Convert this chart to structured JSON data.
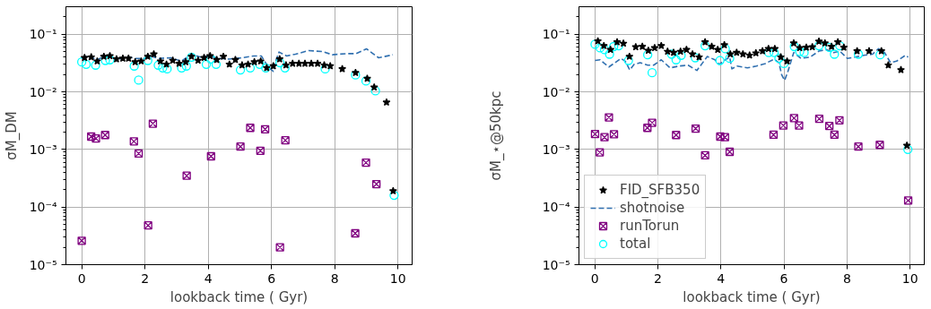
{
  "chart_data": [
    {
      "type": "scatter",
      "xlabel": "lookback time ( Gyr)",
      "ylabel": "σM_DM",
      "log": "y",
      "grid": true,
      "xlim": [
        -0.5,
        10.45
      ],
      "xticks": [
        0,
        2,
        4,
        6,
        8,
        10
      ],
      "ylim": [
        1e-05,
        0.3
      ],
      "yticks": [
        {
          "value": 1e-05,
          "label": "10⁻⁵"
        },
        {
          "value": 0.0001,
          "label": "10⁻⁴"
        },
        {
          "value": 0.001,
          "label": "10⁻³"
        },
        {
          "value": 0.01,
          "label": "10⁻²"
        },
        {
          "value": 0.1,
          "label": "10⁻¹"
        }
      ],
      "series": [
        {
          "type": "line",
          "marker": "none",
          "line_style": "dashed",
          "color": "#3070b0",
          "x": [
            0.0,
            0.14,
            0.33,
            0.49,
            0.75,
            0.94,
            1.13,
            1.41,
            1.69,
            1.97,
            2.21,
            2.44,
            2.82,
            3.15,
            3.47,
            3.76,
            4.04,
            4.32,
            4.65,
            5.07,
            5.45,
            5.68,
            5.92,
            6.06,
            6.15,
            6.24,
            6.48,
            6.76,
            7.18,
            7.61,
            7.93,
            8.36,
            8.68,
            9.01,
            9.39,
            9.84
          ],
          "values": [
            0.038,
            0.041,
            0.039,
            0.036,
            0.042,
            0.04,
            0.036,
            0.041,
            0.038,
            0.038,
            0.041,
            0.038,
            0.039,
            0.034,
            0.045,
            0.04,
            0.042,
            0.038,
            0.037,
            0.039,
            0.042,
            0.042,
            0.026,
            0.0226,
            0.036,
            0.049,
            0.042,
            0.045,
            0.052,
            0.05,
            0.044,
            0.046,
            0.046,
            0.0556,
            0.039,
            0.044
          ]
        },
        {
          "type": "scatter",
          "marker": "star",
          "color": "#000000",
          "x": [
            0.09,
            0.3,
            0.49,
            0.7,
            0.89,
            1.1,
            1.3,
            1.48,
            1.69,
            1.88,
            2.09,
            2.28,
            2.49,
            2.68,
            2.88,
            3.08,
            3.29,
            3.47,
            3.68,
            3.87,
            4.06,
            4.27,
            4.48,
            4.67,
            4.86,
            5.07,
            5.26,
            5.46,
            5.66,
            5.85,
            6.06,
            6.26,
            6.46,
            6.67,
            6.87,
            7.06,
            7.26,
            7.46,
            7.67,
            7.86,
            8.24,
            8.66,
            9.03,
            9.25,
            9.64,
            9.85
          ],
          "values": [
            0.039,
            0.04,
            0.034,
            0.041,
            0.042,
            0.037,
            0.038,
            0.038,
            0.033,
            0.034,
            0.041,
            0.045,
            0.034,
            0.03,
            0.035,
            0.031,
            0.033,
            0.041,
            0.035,
            0.039,
            0.042,
            0.036,
            0.041,
            0.03,
            0.036,
            0.029,
            0.03,
            0.033,
            0.034,
            0.026,
            0.028,
            0.037,
            0.029,
            0.031,
            0.031,
            0.031,
            0.031,
            0.031,
            0.029,
            0.028,
            0.025,
            0.0215,
            0.017,
            0.012,
            0.0066,
            0.00019
          ]
        },
        {
          "type": "scatter",
          "marker": "cross",
          "color": "#800080",
          "x": [
            0.0,
            0.3,
            0.45,
            0.74,
            1.65,
            1.8,
            2.1,
            2.25,
            3.32,
            4.09,
            5.02,
            5.33,
            5.65,
            5.8,
            6.27,
            6.44,
            8.65,
            8.99,
            9.32
          ],
          "values": [
            2.6e-05,
            0.00167,
            0.00155,
            0.00178,
            0.00138,
            0.00085,
            4.8e-05,
            0.0028,
            0.00035,
            0.00076,
            0.00112,
            0.00237,
            0.00095,
            0.00224,
            2e-05,
            0.00144,
            3.5e-05,
            0.00059,
            0.00025
          ]
        },
        {
          "type": "scatter",
          "marker": "circle",
          "color": "#00ffff",
          "x": [
            0.0,
            0.14,
            0.44,
            0.75,
            0.89,
            1.66,
            1.8,
            2.09,
            2.42,
            2.56,
            2.7,
            3.16,
            3.31,
            3.47,
            3.94,
            4.08,
            4.25,
            5.02,
            5.33,
            5.63,
            5.82,
            6.27,
            6.43,
            7.7,
            8.66,
            8.99,
            9.29,
            9.88
          ],
          "values": [
            0.033,
            0.03,
            0.029,
            0.035,
            0.036,
            0.028,
            0.016,
            0.035,
            0.029,
            0.026,
            0.025,
            0.026,
            0.028,
            0.04,
            0.03,
            0.037,
            0.03,
            0.024,
            0.026,
            0.03,
            0.026,
            0.032,
            0.026,
            0.025,
            0.0196,
            0.0154,
            0.0104,
            0.00016
          ]
        }
      ]
    },
    {
      "type": "scatter",
      "xlabel": "lookback time ( Gyr)",
      "ylabel": "σM_⋆@50kpc",
      "log": "y",
      "grid": true,
      "legend": "bottom left",
      "xlim": [
        -0.5,
        10.45
      ],
      "xticks": [
        0,
        2,
        4,
        6,
        8,
        10
      ],
      "ylim": [
        1e-05,
        0.3
      ],
      "yticks": [
        {
          "value": 1e-05,
          "label": "10⁻⁵"
        },
        {
          "value": 0.0001,
          "label": "10⁻⁴"
        },
        {
          "value": 0.001,
          "label": "10⁻³"
        },
        {
          "value": 0.01,
          "label": "10⁻²"
        },
        {
          "value": 0.1,
          "label": "10⁻¹"
        }
      ],
      "series": [
        {
          "name": "FID_SFB350",
          "type": "scatter",
          "marker": "star",
          "color": "#000000",
          "x": [
            0.1,
            0.29,
            0.5,
            0.71,
            0.91,
            1.1,
            1.3,
            1.51,
            1.7,
            1.9,
            2.11,
            2.31,
            2.5,
            2.72,
            2.91,
            3.1,
            3.31,
            3.5,
            3.71,
            3.9,
            4.11,
            4.3,
            4.5,
            4.7,
            4.91,
            5.11,
            5.32,
            5.51,
            5.71,
            5.9,
            6.1,
            6.31,
            6.5,
            6.71,
            6.9,
            7.11,
            7.3,
            7.51,
            7.71,
            7.9,
            8.32,
            8.7,
            9.09,
            9.31,
            9.71,
            9.9
          ],
          "values": [
            0.076,
            0.063,
            0.054,
            0.073,
            0.069,
            0.041,
            0.06,
            0.061,
            0.052,
            0.058,
            0.063,
            0.05,
            0.048,
            0.05,
            0.054,
            0.045,
            0.04,
            0.073,
            0.061,
            0.054,
            0.065,
            0.045,
            0.048,
            0.045,
            0.043,
            0.047,
            0.051,
            0.056,
            0.056,
            0.04,
            0.034,
            0.07,
            0.058,
            0.059,
            0.06,
            0.075,
            0.07,
            0.061,
            0.073,
            0.059,
            0.051,
            0.051,
            0.051,
            0.029,
            0.024,
            0.00117
          ]
        },
        {
          "name": "shotnoise",
          "type": "line",
          "marker": "none",
          "line_style": "dashed",
          "color": "#3070b0",
          "x": [
            0.01,
            0.17,
            0.31,
            0.45,
            0.64,
            0.83,
            0.97,
            1.11,
            1.25,
            1.44,
            1.68,
            1.87,
            2.11,
            2.39,
            2.67,
            2.96,
            3.24,
            3.57,
            3.81,
            3.95,
            4.14,
            4.28,
            4.35,
            4.51,
            4.84,
            5.13,
            5.41,
            5.69,
            5.84,
            5.93,
            6.02,
            6.12,
            6.31,
            6.54,
            6.83,
            7.11,
            7.35,
            7.58,
            7.77,
            8.01,
            8.25,
            8.53,
            8.81,
            9.0,
            9.19,
            9.38,
            9.57,
            9.85,
            9.94
          ],
          "values": [
            0.035,
            0.036,
            0.031,
            0.027,
            0.032,
            0.038,
            0.034,
            0.024,
            0.03,
            0.032,
            0.029,
            0.029,
            0.036,
            0.026,
            0.028,
            0.029,
            0.0235,
            0.041,
            0.036,
            0.03,
            0.036,
            0.04,
            0.025,
            0.028,
            0.026,
            0.028,
            0.031,
            0.037,
            0.032,
            0.0196,
            0.0158,
            0.022,
            0.048,
            0.038,
            0.04,
            0.051,
            0.054,
            0.048,
            0.051,
            0.038,
            0.04,
            0.043,
            0.045,
            0.056,
            0.048,
            0.032,
            0.034,
            0.043,
            0.04
          ]
        },
        {
          "name": "runTorun",
          "type": "scatter",
          "marker": "cross",
          "color": "#800080",
          "x": [
            0.01,
            0.16,
            0.31,
            0.45,
            0.61,
            1.67,
            1.82,
            2.58,
            3.2,
            3.5,
            3.98,
            4.13,
            4.28,
            5.67,
            5.98,
            6.32,
            6.48,
            7.12,
            7.44,
            7.6,
            7.76,
            8.36,
            9.04,
            9.94
          ],
          "values": [
            0.00185,
            0.00089,
            0.00163,
            0.0036,
            0.00183,
            0.00237,
            0.0029,
            0.00178,
            0.0023,
            0.00079,
            0.00167,
            0.00163,
            0.00091,
            0.0018,
            0.0026,
            0.0035,
            0.0026,
            0.0034,
            0.00255,
            0.0018,
            0.0032,
            0.00112,
            0.0012,
            0.00013
          ]
        },
        {
          "name": "total",
          "type": "scatter",
          "marker": "circle",
          "color": "#00ffff",
          "x": [
            0.01,
            0.17,
            0.31,
            0.47,
            0.6,
            0.76,
            1.07,
            1.68,
            1.82,
            2.44,
            2.58,
            2.74,
            3.19,
            3.5,
            3.97,
            4.14,
            4.28,
            5.52,
            5.69,
            5.84,
            6.0,
            6.33,
            6.5,
            6.64,
            7.11,
            7.44,
            7.6,
            7.77,
            8.36,
            9.05,
            9.93
          ],
          "values": [
            0.067,
            0.058,
            0.054,
            0.045,
            0.061,
            0.063,
            0.035,
            0.044,
            0.0215,
            0.045,
            0.036,
            0.043,
            0.039,
            0.063,
            0.035,
            0.056,
            0.038,
            0.048,
            0.048,
            0.038,
            0.031,
            0.061,
            0.05,
            0.048,
            0.063,
            0.059,
            0.045,
            0.063,
            0.045,
            0.044,
            0.001
          ]
        }
      ]
    }
  ]
}
